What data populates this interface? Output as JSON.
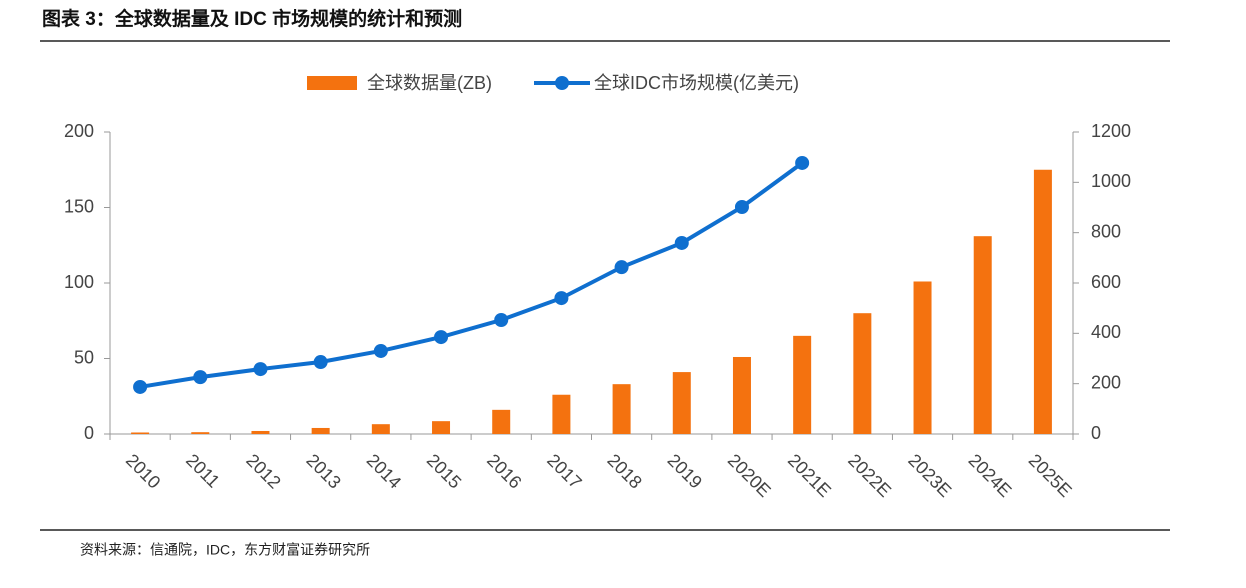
{
  "title": "图表 3：全球数据量及 IDC 市场规模的统计和预测",
  "source": "资料来源：信通院，IDC，东方财富证券研究所",
  "chart_data": {
    "type": "combo",
    "categories": [
      "2010",
      "2011",
      "2012",
      "2013",
      "2014",
      "2015",
      "2016",
      "2017",
      "2018",
      "2019",
      "2020E",
      "2021E",
      "2022E",
      "2023E",
      "2024E",
      "2025E"
    ],
    "series": [
      {
        "name": "全球数据量(ZB)",
        "type": "bar",
        "color": "#f4720f",
        "values": [
          1,
          1.2,
          2,
          4,
          6.5,
          8.5,
          16,
          26,
          33,
          41,
          51,
          65,
          80,
          101,
          131,
          175
        ]
      },
      {
        "name": "全球IDC市场规模(亿美元)",
        "type": "line",
        "axis": "y2",
        "color": "#0f6fcf",
        "values": [
          187,
          226,
          258,
          286,
          330,
          385,
          453,
          540,
          663,
          759,
          902,
          1077,
          null,
          null,
          null,
          null
        ]
      }
    ],
    "ylim": [
      0,
      200
    ],
    "yticks": [
      0,
      50,
      100,
      150,
      200
    ],
    "y2lim": [
      0,
      1200
    ],
    "y2ticks": [
      0,
      200,
      400,
      600,
      800,
      1000,
      1200
    ],
    "grid": false
  }
}
